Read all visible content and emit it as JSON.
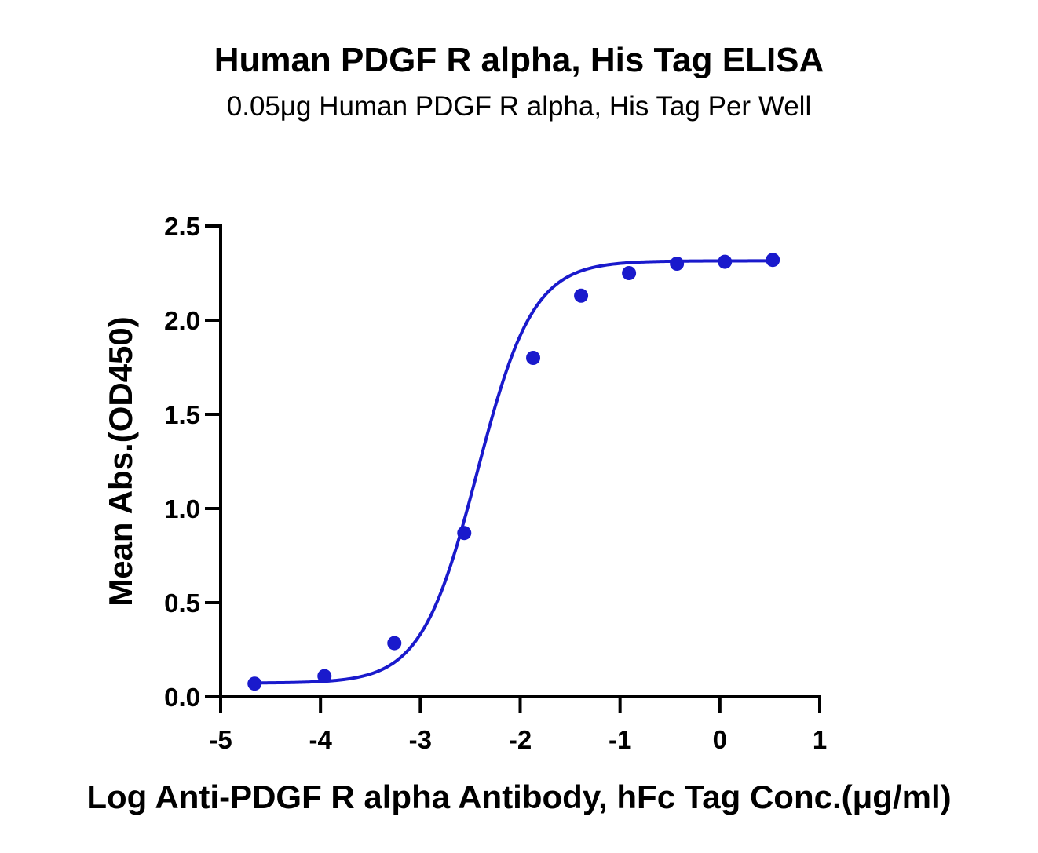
{
  "chart_data": {
    "type": "scatter",
    "title": "Human PDGF R alpha, His Tag ELISA",
    "subtitle": "0.05μg Human PDGF R alpha, His Tag Per Well",
    "xlabel": "Log Anti-PDGF R alpha Antibody, hFc Tag Conc.(μg/ml)",
    "ylabel": "Mean Abs.(OD450)",
    "xlim": [
      -5,
      1
    ],
    "ylim": [
      0,
      2.5
    ],
    "x_ticks": [
      -5,
      -4,
      -3,
      -2,
      -1,
      0,
      1
    ],
    "x_tick_labels": [
      "-5",
      "-4",
      "-3",
      "-2",
      "-1",
      "0",
      "1"
    ],
    "y_ticks": [
      0,
      0.5,
      1,
      1.5,
      2,
      2.5
    ],
    "y_tick_labels": [
      "0.0",
      "0.5",
      "1.0",
      "1.5",
      "2.0",
      "2.5"
    ],
    "grid": false,
    "series": [
      {
        "color": "#1a1acc",
        "x": [
          -4.66,
          -3.96,
          -3.26,
          -2.56,
          -1.87,
          -1.39,
          -0.91,
          -0.43,
          0.05,
          0.53
        ],
        "y": [
          0.07,
          0.11,
          0.285,
          0.87,
          1.8,
          2.13,
          2.25,
          2.3,
          2.31,
          2.32
        ],
        "fit": "four-parameter logistic"
      }
    ]
  }
}
